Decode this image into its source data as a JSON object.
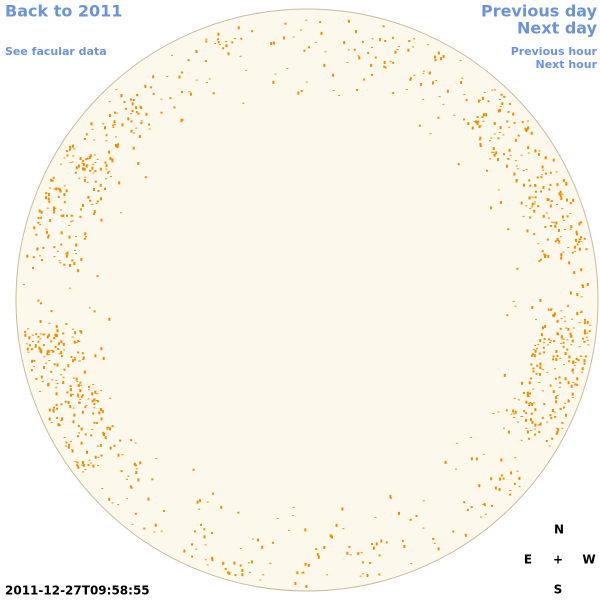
{
  "header": {
    "back_link": "Back to 2011",
    "facular_link": "See facular data"
  },
  "nav": {
    "previous_day": "Previous day",
    "next_day": "Next day",
    "previous_hour": "Previous hour",
    "next_hour": "Next hour"
  },
  "timestamp": "2011-12-27T09:58:55",
  "compass": {
    "north": "N",
    "east": "E",
    "center": "+",
    "west": "W",
    "south": "S"
  }
}
